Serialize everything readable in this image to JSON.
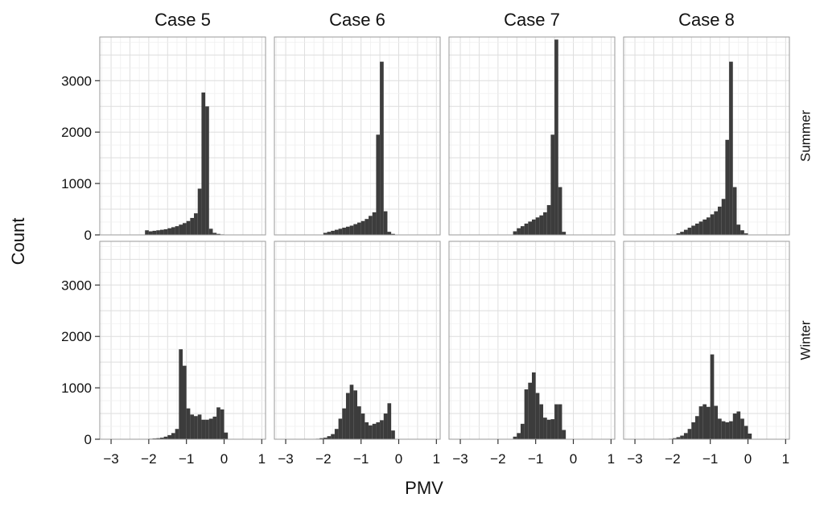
{
  "chart_data": {
    "type": "histogram",
    "layout": "facet-grid",
    "xlabel": "PMV",
    "ylabel": "Count",
    "xlim": [
      -3.3,
      1.1
    ],
    "ylim": [
      0,
      3850
    ],
    "x_ticks": [
      -3,
      -2,
      -1,
      0,
      1
    ],
    "x_tick_labels": [
      "−3",
      "−2",
      "−1",
      "0",
      "1"
    ],
    "y_ticks": [
      0,
      1000,
      2000,
      3000
    ],
    "bin_width": 0.1,
    "columns": [
      "Case 5",
      "Case 6",
      "Case 7",
      "Case 8"
    ],
    "rows": [
      "Summer",
      "Winter"
    ],
    "grid": true,
    "panels": [
      {
        "row": "Summer",
        "col": "Case 5",
        "bin_start": -2.1,
        "counts": [
          90,
          70,
          80,
          90,
          100,
          110,
          130,
          150,
          170,
          200,
          230,
          270,
          330,
          420,
          900,
          2770,
          2500,
          120,
          40,
          20,
          10
        ]
      },
      {
        "row": "Summer",
        "col": "Case 6",
        "bin_start": -2.0,
        "counts": [
          40,
          60,
          80,
          100,
          120,
          140,
          160,
          180,
          210,
          240,
          270,
          310,
          370,
          440,
          1950,
          3370,
          460,
          60,
          20
        ]
      },
      {
        "row": "Summer",
        "col": "Case 7",
        "bin_start": -1.6,
        "counts": [
          70,
          130,
          170,
          220,
          260,
          300,
          340,
          380,
          440,
          580,
          1950,
          3800,
          930,
          60
        ]
      },
      {
        "row": "Summer",
        "col": "Case 8",
        "bin_start": -1.9,
        "counts": [
          30,
          60,
          100,
          140,
          180,
          220,
          260,
          300,
          340,
          400,
          460,
          550,
          700,
          1850,
          3370,
          930,
          200,
          90,
          30
        ]
      },
      {
        "row": "Winter",
        "col": "Case 5",
        "bin_start": -2.0,
        "counts": [
          10,
          15,
          20,
          30,
          50,
          80,
          120,
          200,
          1750,
          1430,
          600,
          480,
          450,
          480,
          380,
          380,
          400,
          440,
          620,
          580,
          130
        ]
      },
      {
        "row": "Winter",
        "col": "Case 6",
        "bin_start": -2.2,
        "counts": [
          10,
          20,
          30,
          60,
          100,
          200,
          400,
          600,
          900,
          1060,
          950,
          640,
          500,
          330,
          270,
          300,
          330,
          370,
          500,
          700,
          170
        ]
      },
      {
        "row": "Winter",
        "col": "Case 7",
        "bin_start": -1.6,
        "counts": [
          50,
          120,
          300,
          970,
          1100,
          1300,
          900,
          680,
          420,
          380,
          390,
          680,
          680,
          180
        ]
      },
      {
        "row": "Winter",
        "col": "Case 8",
        "bin_start": -2.1,
        "counts": [
          10,
          20,
          40,
          70,
          120,
          200,
          330,
          450,
          640,
          680,
          630,
          1650,
          650,
          400,
          350,
          330,
          350,
          500,
          540,
          400,
          260,
          110
        ]
      }
    ]
  }
}
